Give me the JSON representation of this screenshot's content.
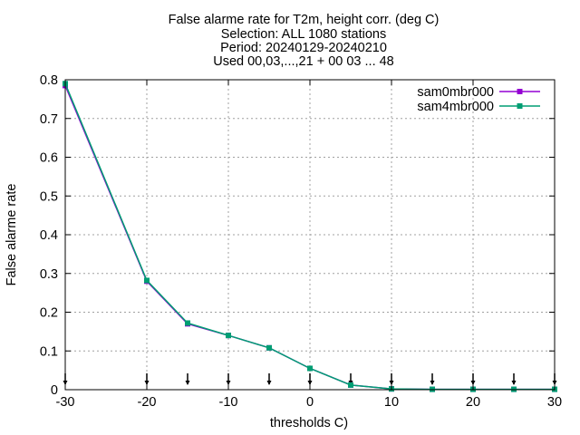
{
  "chart_data": {
    "type": "line",
    "title_lines": [
      "False alarme rate  for T2m, height corr. (deg C)",
      "Selection: ALL   1080 stations",
      "Period: 20240129-20240210",
      "Used 00,03,...,21 + 00 03 ... 48"
    ],
    "xlabel": "thresholds C)",
    "ylabel": "False alarme rate",
    "xlim": [
      -30,
      30
    ],
    "ylim": [
      0,
      0.8
    ],
    "x_ticks": [
      -30,
      -20,
      -10,
      0,
      10,
      20,
      30
    ],
    "y_ticks": [
      0,
      0.1,
      0.2,
      0.3,
      0.4,
      0.5,
      0.6,
      0.7,
      0.8
    ],
    "x_tick_labels": [
      "-30",
      "-20",
      "-10",
      "0",
      "10",
      "20",
      "30"
    ],
    "y_tick_labels": [
      "0",
      "0.1",
      "0.2",
      "0.3",
      "0.4",
      "0.5",
      "0.6",
      "0.7",
      "0.8"
    ],
    "grid": true,
    "legend_position": "top-right",
    "threshold_markers": [
      -30,
      -20,
      -15,
      -10,
      -5,
      0,
      5,
      10,
      15,
      20,
      25,
      30
    ],
    "x": [
      -30,
      -20,
      -15,
      -10,
      -5,
      0,
      5,
      10,
      15,
      20,
      25,
      30
    ],
    "series": [
      {
        "name": "sam0mbr000",
        "color": "#9400d3",
        "values": [
          0.785,
          0.28,
          0.17,
          0.14,
          0.108,
          0.055,
          0.012,
          0.002,
          0.001,
          0.001,
          0.001,
          0.001
        ]
      },
      {
        "name": "sam4mbr000",
        "color": "#009e73",
        "values": [
          0.79,
          0.282,
          0.172,
          0.14,
          0.108,
          0.055,
          0.012,
          0.002,
          0.001,
          0.001,
          0.001,
          0.001
        ]
      }
    ]
  }
}
